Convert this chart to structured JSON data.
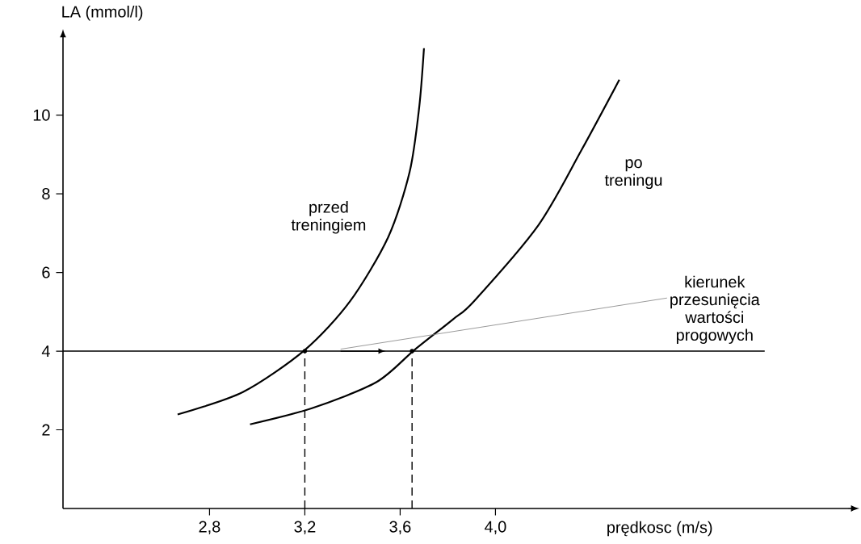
{
  "chart_data": {
    "type": "line",
    "xlabel": "prędkosc (m/s)",
    "ylabel": "LA (mmol/l)",
    "xlim": [
      2.185,
      5.48
    ],
    "ylim": [
      0,
      11.9
    ],
    "xticks": [
      {
        "value": 2.8,
        "label": "2,8"
      },
      {
        "value": 3.2,
        "label": "3,2"
      },
      {
        "value": 3.6,
        "label": "3,6"
      },
      {
        "value": 4.0,
        "label": "4,0"
      }
    ],
    "yticks": [
      2,
      4,
      6,
      8,
      10
    ],
    "series": [
      {
        "name": "przed treningiem",
        "color": "#000000",
        "x": [
          2.666,
          2.94,
          3.2,
          3.39,
          3.55,
          3.64,
          3.68,
          3.7
        ],
        "values": [
          2.39,
          2.96,
          4.03,
          5.27,
          6.9,
          8.56,
          10.2,
          11.7
        ]
      },
      {
        "name": "po treningu",
        "color": "#000000",
        "x": [
          2.97,
          3.23,
          3.5,
          3.66,
          3.82,
          3.91,
          4.18,
          4.36,
          4.52
        ],
        "values": [
          2.14,
          2.55,
          3.21,
          4.03,
          4.8,
          5.27,
          7.2,
          9.1,
          10.9
        ]
      }
    ],
    "ref_lines": [
      {
        "axis": "y",
        "value": 4,
        "color": "#000000",
        "line_style": "solid"
      },
      {
        "axis": "x",
        "value": 3.2,
        "color": "#000000",
        "line_style": "dashed"
      },
      {
        "axis": "x",
        "value": 3.65,
        "color": "#000000",
        "line_style": "dashed"
      }
    ],
    "annotations": [
      "kierunek przesunięcia wartości progowych"
    ],
    "marker": "none",
    "line_style": "solid",
    "legend": false,
    "grid": false
  }
}
